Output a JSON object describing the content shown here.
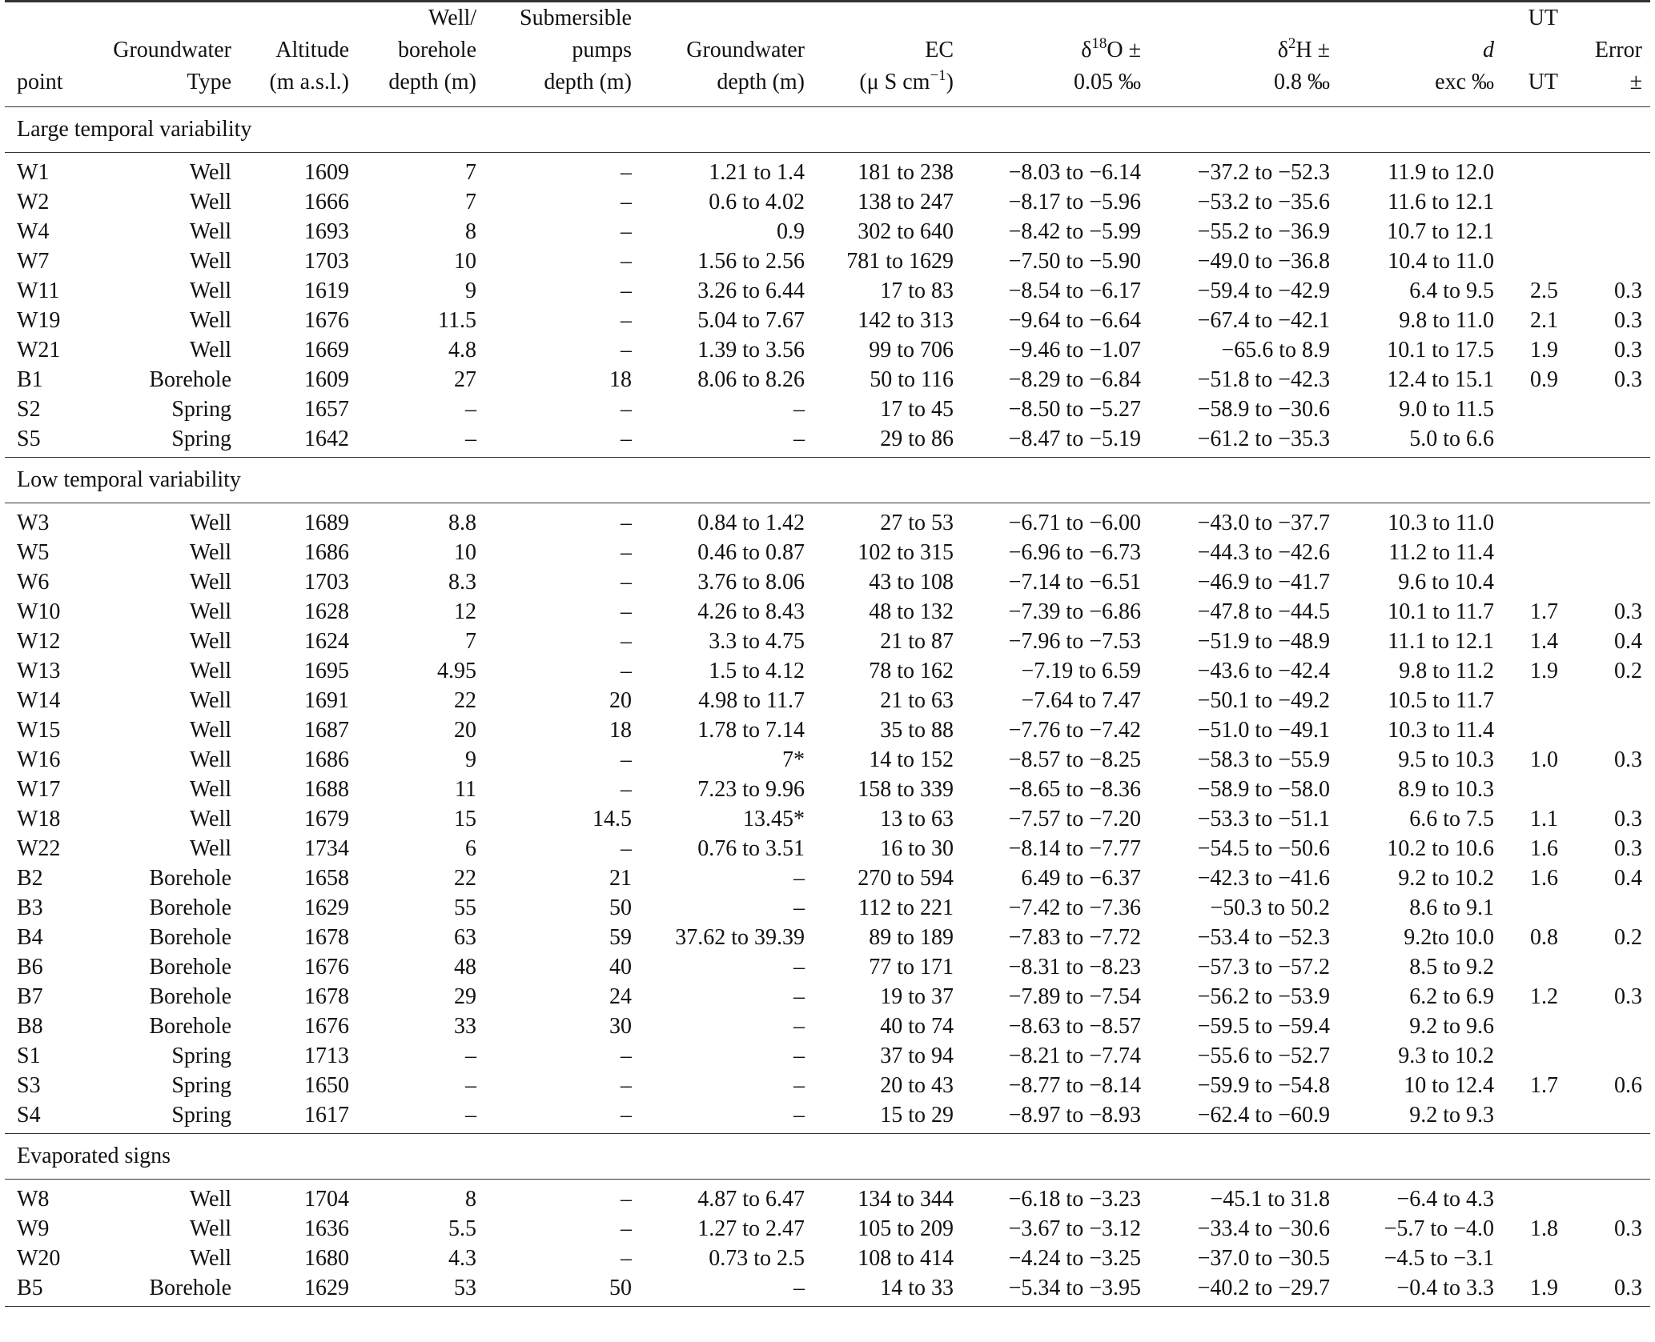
{
  "header": {
    "rows": [
      [
        "",
        "",
        "",
        "Well/",
        "Submersible",
        "",
        "",
        "",
        "",
        "",
        "UT",
        ""
      ],
      [
        "",
        "Groundwater",
        "Altitude",
        "borehole",
        "pumps",
        "Groundwater",
        "EC",
        "δ|18|O ±",
        "δ|2|H ±",
        "d",
        "",
        "Error"
      ],
      [
        "point",
        "Type",
        "(m a.s.l.)",
        "depth (m)",
        "depth (m)",
        "depth (m)",
        "(μ S cm|−1|)",
        "0.05 ‰",
        "0.8 ‰",
        "exc ‰",
        "UT",
        "±"
      ]
    ]
  },
  "sections": [
    {
      "title": "Large temporal variability",
      "rows": [
        [
          "W1",
          "Well",
          "1609",
          "7",
          "–",
          "1.21 to 1.4",
          "181 to 238",
          "−8.03 to −6.14",
          "−37.2 to −52.3",
          "11.9 to 12.0",
          "",
          ""
        ],
        [
          "W2",
          "Well",
          "1666",
          "7",
          "–",
          "0.6 to 4.02",
          "138 to 247",
          "−8.17 to −5.96",
          "−53.2 to −35.6",
          "11.6 to 12.1",
          "",
          ""
        ],
        [
          "W4",
          "Well",
          "1693",
          "8",
          "–",
          "0.9",
          "302 to 640",
          "−8.42 to −5.99",
          "−55.2 to −36.9",
          "10.7 to 12.1",
          "",
          ""
        ],
        [
          "W7",
          "Well",
          "1703",
          "10",
          "–",
          "1.56 to 2.56",
          "781 to 1629",
          "−7.50 to −5.90",
          "−49.0 to −36.8",
          "10.4 to 11.0",
          "",
          ""
        ],
        [
          "W11",
          "Well",
          "1619",
          "9",
          "–",
          "3.26 to 6.44",
          "17 to 83",
          "−8.54 to −6.17",
          "−59.4 to −42.9",
          "6.4 to 9.5",
          "2.5",
          "0.3"
        ],
        [
          "W19",
          "Well",
          "1676",
          "11.5",
          "–",
          "5.04 to 7.67",
          "142 to 313",
          "−9.64 to −6.64",
          "−67.4 to −42.1",
          "9.8 to 11.0",
          "2.1",
          "0.3"
        ],
        [
          "W21",
          "Well",
          "1669",
          "4.8",
          "–",
          "1.39 to 3.56",
          "99 to 706",
          "−9.46 to −1.07",
          "−65.6 to 8.9",
          "10.1 to 17.5",
          "1.9",
          "0.3"
        ],
        [
          "B1",
          "Borehole",
          "1609",
          "27",
          "18",
          "8.06 to 8.26",
          "50 to 116",
          "−8.29 to −6.84",
          "−51.8 to −42.3",
          "12.4 to 15.1",
          "0.9",
          "0.3"
        ],
        [
          "S2",
          "Spring",
          "1657",
          "–",
          "–",
          "–",
          "17 to 45",
          "−8.50 to −5.27",
          "−58.9 to −30.6",
          "9.0 to 11.5",
          "",
          ""
        ],
        [
          "S5",
          "Spring",
          "1642",
          "–",
          "–",
          "–",
          "29 to 86",
          "−8.47 to −5.19",
          "−61.2 to −35.3",
          "5.0 to 6.6",
          "",
          ""
        ]
      ]
    },
    {
      "title": "Low temporal variability",
      "rows": [
        [
          "W3",
          "Well",
          "1689",
          "8.8",
          "–",
          "0.84 to 1.42",
          "27 to 53",
          "−6.71 to −6.00",
          "−43.0 to −37.7",
          "10.3 to 11.0",
          "",
          ""
        ],
        [
          "W5",
          "Well",
          "1686",
          "10",
          "–",
          "0.46 to 0.87",
          "102 to 315",
          "−6.96 to −6.73",
          "−44.3 to −42.6",
          "11.2 to 11.4",
          "",
          ""
        ],
        [
          "W6",
          "Well",
          "1703",
          "8.3",
          "–",
          "3.76 to 8.06",
          "43 to 108",
          "−7.14 to −6.51",
          "−46.9 to −41.7",
          "9.6 to 10.4",
          "",
          ""
        ],
        [
          "W10",
          "Well",
          "1628",
          "12",
          "–",
          "4.26 to 8.43",
          "48 to 132",
          "−7.39 to −6.86",
          "−47.8 to −44.5",
          "10.1 to 11.7",
          "1.7",
          "0.3"
        ],
        [
          "W12",
          "Well",
          "1624",
          "7",
          "–",
          "3.3 to 4.75",
          "21 to 87",
          "−7.96 to −7.53",
          "−51.9 to −48.9",
          "11.1 to 12.1",
          "1.4",
          "0.4"
        ],
        [
          "W13",
          "Well",
          "1695",
          "4.95",
          "–",
          "1.5 to 4.12",
          "78 to 162",
          "−7.19 to 6.59",
          "−43.6 to −42.4",
          "9.8 to 11.2",
          "1.9",
          "0.2"
        ],
        [
          "W14",
          "Well",
          "1691",
          "22",
          "20",
          "4.98 to 11.7",
          "21 to 63",
          "−7.64 to 7.47",
          "−50.1 to −49.2",
          "10.5 to 11.7",
          "",
          ""
        ],
        [
          "W15",
          "Well",
          "1687",
          "20",
          "18",
          "1.78 to 7.14",
          "35 to 88",
          "−7.76 to −7.42",
          "−51.0 to −49.1",
          "10.3 to 11.4",
          "",
          ""
        ],
        [
          "W16",
          "Well",
          "1686",
          "9",
          "–",
          "7*",
          "14 to 152",
          "−8.57 to −8.25",
          "−58.3 to −55.9",
          "9.5 to 10.3",
          "1.0",
          "0.3"
        ],
        [
          "W17",
          "Well",
          "1688",
          "11",
          "–",
          "7.23 to 9.96",
          "158 to 339",
          "−8.65 to −8.36",
          "−58.9 to −58.0",
          "8.9 to 10.3",
          "",
          ""
        ],
        [
          "W18",
          "Well",
          "1679",
          "15",
          "14.5",
          "13.45*",
          "13 to 63",
          "−7.57 to −7.20",
          "−53.3 to −51.1",
          "6.6 to 7.5",
          "1.1",
          "0.3"
        ],
        [
          "W22",
          "Well",
          "1734",
          "6",
          "–",
          "0.76 to 3.51",
          "16 to 30",
          "−8.14 to −7.77",
          "−54.5 to −50.6",
          "10.2 to 10.6",
          "1.6",
          "0.3"
        ],
        [
          "B2",
          "Borehole",
          "1658",
          "22",
          "21",
          "–",
          "270 to 594",
          "6.49 to −6.37",
          "−42.3 to −41.6",
          "9.2 to 10.2",
          "1.6",
          "0.4"
        ],
        [
          "B3",
          "Borehole",
          "1629",
          "55",
          "50",
          "–",
          "112 to 221",
          "−7.42 to −7.36",
          "−50.3 to 50.2",
          "8.6 to 9.1",
          "",
          ""
        ],
        [
          "B4",
          "Borehole",
          "1678",
          "63",
          "59",
          "37.62 to 39.39",
          "89 to 189",
          "−7.83 to −7.72",
          "−53.4 to −52.3",
          "9.2to 10.0",
          "0.8",
          "0.2"
        ],
        [
          "B6",
          "Borehole",
          "1676",
          "48",
          "40",
          "–",
          "77 to 171",
          "−8.31 to −8.23",
          "−57.3 to −57.2",
          "8.5 to 9.2",
          "",
          ""
        ],
        [
          "B7",
          "Borehole",
          "1678",
          "29",
          "24",
          "–",
          "19 to 37",
          "−7.89 to −7.54",
          "−56.2 to −53.9",
          "6.2 to 6.9",
          "1.2",
          "0.3"
        ],
        [
          "B8",
          "Borehole",
          "1676",
          "33",
          "30",
          "–",
          "40 to 74",
          "−8.63 to −8.57",
          "−59.5 to −59.4",
          "9.2 to 9.6",
          "",
          ""
        ],
        [
          "S1",
          "Spring",
          "1713",
          "–",
          "–",
          "–",
          "37 to 94",
          "−8.21 to −7.74",
          "−55.6 to −52.7",
          "9.3 to 10.2",
          "",
          ""
        ],
        [
          "S3",
          "Spring",
          "1650",
          "–",
          "–",
          "–",
          "20 to 43",
          "−8.77 to −8.14",
          "−59.9 to −54.8",
          "10 to 12.4",
          "1.7",
          "0.6"
        ],
        [
          "S4",
          "Spring",
          "1617",
          "–",
          "–",
          "–",
          "15 to 29",
          "−8.97 to −8.93",
          "−62.4 to −60.9",
          "9.2 to 9.3",
          "",
          ""
        ]
      ]
    },
    {
      "title": "Evaporated signs",
      "rows": [
        [
          "W8",
          "Well",
          "1704",
          "8",
          "–",
          "4.87 to 6.47",
          "134 to 344",
          "−6.18 to −3.23",
          "−45.1 to 31.8",
          "−6.4 to 4.3",
          "",
          ""
        ],
        [
          "W9",
          "Well",
          "1636",
          "5.5",
          "–",
          "1.27 to 2.47",
          "105 to 209",
          "−3.67 to −3.12",
          "−33.4 to −30.6",
          "−5.7 to −4.0",
          "1.8",
          "0.3"
        ],
        [
          "W20",
          "Well",
          "1680",
          "4.3",
          "–",
          "0.73 to 2.5",
          "108 to 414",
          "−4.24 to −3.25",
          "−37.0 to −30.5",
          "−4.5 to −3.1",
          "",
          ""
        ],
        [
          "B5",
          "Borehole",
          "1629",
          "53",
          "50",
          "–",
          "14 to 33",
          "−5.34 to −3.95",
          "−40.2 to −29.7",
          "−0.4 to 3.3",
          "1.9",
          "0.3"
        ]
      ]
    }
  ]
}
